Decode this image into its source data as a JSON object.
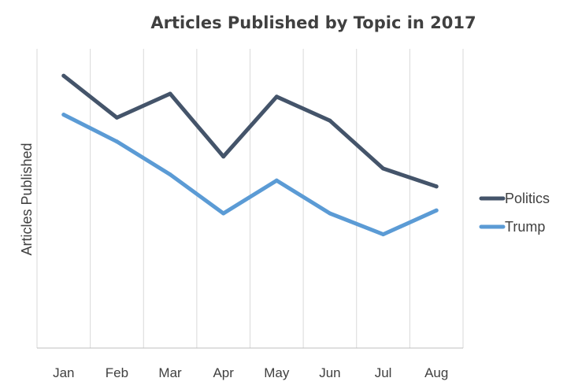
{
  "chart_data": {
    "type": "line",
    "title": "Articles Published by Topic in 2017",
    "xlabel": "",
    "ylabel": "Articles Published",
    "categories": [
      "Jan",
      "Feb",
      "Mar",
      "Apr",
      "May",
      "Jun",
      "Jul",
      "Aug"
    ],
    "series": [
      {
        "name": "Politics",
        "color": "#44546A",
        "values": [
          91,
          77,
          85,
          64,
          84,
          76,
          60,
          54
        ]
      },
      {
        "name": "Trump",
        "color": "#5B9BD5",
        "values": [
          78,
          69,
          58,
          45,
          56,
          45,
          38,
          46
        ]
      }
    ],
    "ylim": [
      0,
      100
    ],
    "yaxis_tick_labels_shown": false,
    "vertical_gridlines": true,
    "horizontal_gridlines": false,
    "legend_position": "right"
  }
}
